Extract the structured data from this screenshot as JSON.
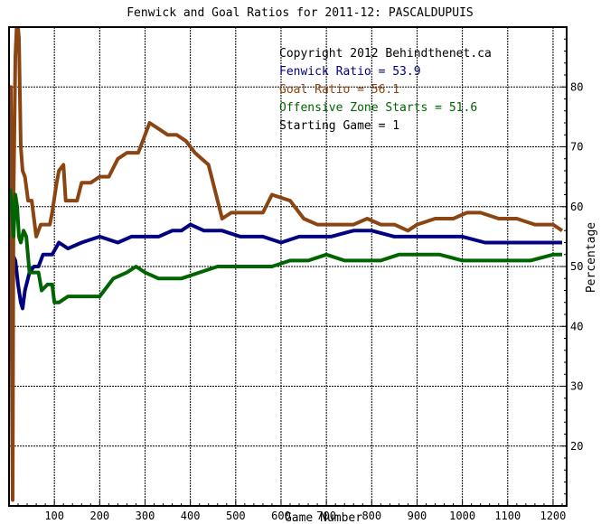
{
  "chart_data": {
    "type": "line",
    "title": "Fenwick and Goal Ratios for 2011-12: PASCALDUPUIS",
    "xlabel": "Game Number",
    "ylabel": "Percentage",
    "xlim": [
      0,
      1230
    ],
    "ylim": [
      10,
      90
    ],
    "x_ticks": [
      100,
      200,
      300,
      400,
      500,
      600,
      700,
      800,
      900,
      1000,
      1100,
      1200
    ],
    "y_ticks": [
      20,
      30,
      40,
      50,
      60,
      70,
      80
    ],
    "grid": true,
    "legend_lines": [
      {
        "text": "Copyright 2012 Behindthenet.ca",
        "color": "#000000"
      },
      {
        "text": "Fenwick Ratio = 53.9",
        "color": "#000080"
      },
      {
        "text": "Goal Ratio = 56.1",
        "color": "#8B4513"
      },
      {
        "text": "Offensive Zone Starts = 51.6",
        "color": "#006400"
      },
      {
        "text": "Starting Game = 1",
        "color": "#000000"
      }
    ],
    "series": [
      {
        "color": "#000080",
        "points": [
          [
            2,
            46
          ],
          [
            8,
            52
          ],
          [
            14,
            51
          ],
          [
            20,
            47
          ],
          [
            26,
            44
          ],
          [
            30,
            43
          ],
          [
            35,
            46
          ],
          [
            45,
            49
          ],
          [
            55,
            50
          ],
          [
            65,
            50
          ],
          [
            75,
            52
          ],
          [
            95,
            52
          ],
          [
            110,
            54
          ],
          [
            130,
            53
          ],
          [
            160,
            54
          ],
          [
            200,
            55
          ],
          [
            240,
            54
          ],
          [
            270,
            55
          ],
          [
            300,
            55
          ],
          [
            330,
            55
          ],
          [
            360,
            56
          ],
          [
            380,
            56
          ],
          [
            400,
            57
          ],
          [
            430,
            56
          ],
          [
            470,
            56
          ],
          [
            510,
            55
          ],
          [
            560,
            55
          ],
          [
            600,
            54
          ],
          [
            640,
            55
          ],
          [
            680,
            55
          ],
          [
            710,
            55
          ],
          [
            760,
            56
          ],
          [
            800,
            56
          ],
          [
            850,
            55
          ],
          [
            880,
            55
          ],
          [
            920,
            55
          ],
          [
            960,
            55
          ],
          [
            1000,
            55
          ],
          [
            1050,
            54
          ],
          [
            1100,
            54
          ],
          [
            1150,
            54
          ],
          [
            1200,
            54
          ],
          [
            1220,
            54
          ]
        ]
      },
      {
        "color": "#8B4513",
        "points": [
          [
            2,
            40
          ],
          [
            4,
            80
          ],
          [
            6,
            35
          ],
          [
            8,
            11
          ],
          [
            10,
            62
          ],
          [
            14,
            85
          ],
          [
            18,
            92
          ],
          [
            22,
            88
          ],
          [
            26,
            70
          ],
          [
            30,
            66
          ],
          [
            35,
            65
          ],
          [
            42,
            61
          ],
          [
            50,
            61
          ],
          [
            60,
            55
          ],
          [
            70,
            57
          ],
          [
            90,
            57
          ],
          [
            95,
            59
          ],
          [
            105,
            64
          ],
          [
            110,
            66
          ],
          [
            120,
            67
          ],
          [
            125,
            61
          ],
          [
            150,
            61
          ],
          [
            160,
            64
          ],
          [
            180,
            64
          ],
          [
            200,
            65
          ],
          [
            220,
            65
          ],
          [
            240,
            68
          ],
          [
            260,
            69
          ],
          [
            285,
            69
          ],
          [
            295,
            71
          ],
          [
            310,
            74
          ],
          [
            330,
            73
          ],
          [
            350,
            72
          ],
          [
            370,
            72
          ],
          [
            390,
            71
          ],
          [
            410,
            69
          ],
          [
            440,
            67
          ],
          [
            470,
            58
          ],
          [
            490,
            59
          ],
          [
            520,
            59
          ],
          [
            540,
            59
          ],
          [
            560,
            59
          ],
          [
            580,
            62
          ],
          [
            620,
            61
          ],
          [
            650,
            58
          ],
          [
            680,
            57
          ],
          [
            720,
            57
          ],
          [
            760,
            57
          ],
          [
            790,
            58
          ],
          [
            820,
            57
          ],
          [
            850,
            57
          ],
          [
            880,
            56
          ],
          [
            900,
            57
          ],
          [
            940,
            58
          ],
          [
            980,
            58
          ],
          [
            1010,
            59
          ],
          [
            1040,
            59
          ],
          [
            1080,
            58
          ],
          [
            1120,
            58
          ],
          [
            1160,
            57
          ],
          [
            1200,
            57
          ],
          [
            1220,
            56
          ]
        ]
      },
      {
        "color": "#006400",
        "points": [
          [
            2,
            63
          ],
          [
            6,
            60
          ],
          [
            10,
            55
          ],
          [
            14,
            62
          ],
          [
            18,
            60
          ],
          [
            22,
            55
          ],
          [
            26,
            54
          ],
          [
            32,
            56
          ],
          [
            38,
            55
          ],
          [
            45,
            49
          ],
          [
            55,
            49
          ],
          [
            65,
            49
          ],
          [
            72,
            46
          ],
          [
            85,
            47
          ],
          [
            95,
            47
          ],
          [
            100,
            44
          ],
          [
            110,
            44
          ],
          [
            130,
            45
          ],
          [
            160,
            45
          ],
          [
            200,
            45
          ],
          [
            230,
            48
          ],
          [
            260,
            49
          ],
          [
            280,
            50
          ],
          [
            300,
            49
          ],
          [
            330,
            48
          ],
          [
            380,
            48
          ],
          [
            420,
            49
          ],
          [
            460,
            50
          ],
          [
            500,
            50
          ],
          [
            540,
            50
          ],
          [
            580,
            50
          ],
          [
            620,
            51
          ],
          [
            660,
            51
          ],
          [
            700,
            52
          ],
          [
            740,
            51
          ],
          [
            780,
            51
          ],
          [
            820,
            51
          ],
          [
            860,
            52
          ],
          [
            900,
            52
          ],
          [
            950,
            52
          ],
          [
            1000,
            51
          ],
          [
            1050,
            51
          ],
          [
            1100,
            51
          ],
          [
            1150,
            51
          ],
          [
            1200,
            52
          ],
          [
            1220,
            52
          ]
        ]
      }
    ]
  }
}
